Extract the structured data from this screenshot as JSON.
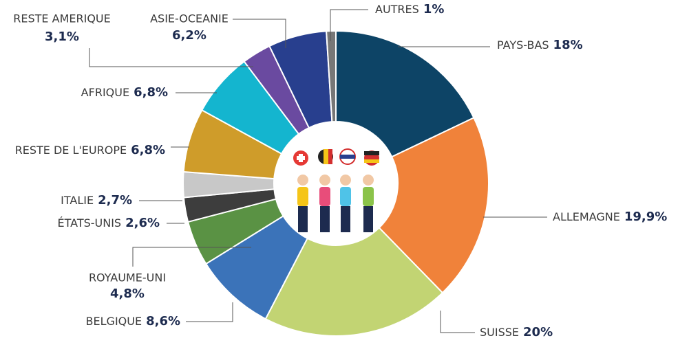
{
  "chart_data": {
    "type": "donut",
    "categories": [
      "PAYS-BAS",
      "ALLEMAGNE",
      "SUISSE",
      "BELGIQUE",
      "ROYAUME-UNI",
      "ÉTATS-UNIS",
      "ITALIE",
      "RESTE DE L'EUROPE",
      "AFRIQUE",
      "RESTE AMERIQUE",
      "ASIE-OCEANIE",
      "AUTRES"
    ],
    "values": [
      18,
      19.9,
      20,
      8.6,
      4.8,
      2.6,
      2.7,
      6.8,
      6.8,
      3.1,
      6.2,
      1
    ],
    "value_labels": [
      "18%",
      "19,9%",
      "20%",
      "8,6%",
      "4,8%",
      "2,6%",
      "2,7%",
      "6,8%",
      "6,8%",
      "3,1%",
      "6,2%",
      "1%"
    ],
    "colors": [
      "#0d4466",
      "#f0823a",
      "#c2d473",
      "#3b73b9",
      "#5a9244",
      "#3d3d3d",
      "#c8c8c8",
      "#cf9c2a",
      "#14b5cf",
      "#6a4aa0",
      "#283f8e",
      "#777777"
    ]
  }
}
